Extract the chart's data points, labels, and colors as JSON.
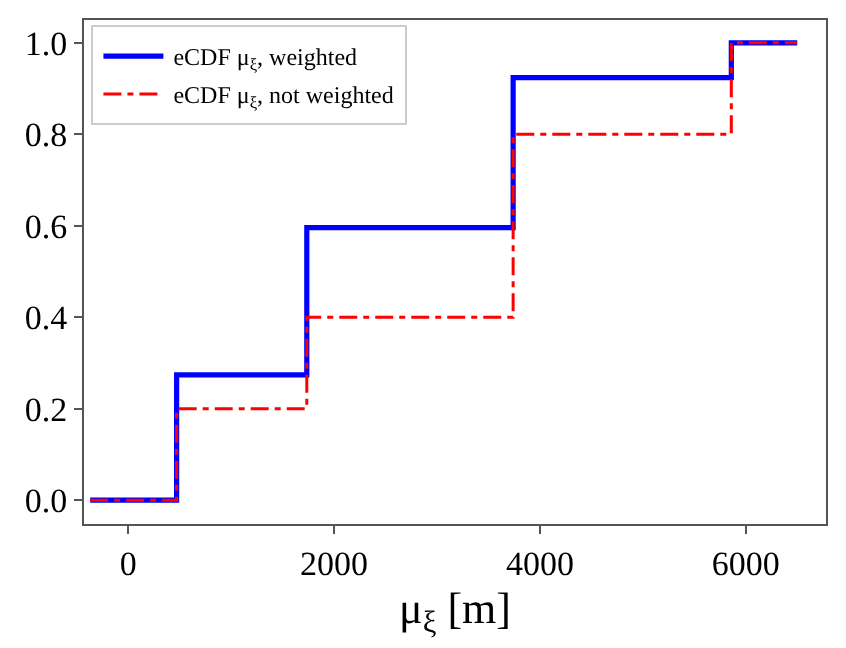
{
  "chart_data": {
    "type": "step",
    "xlabel": "μ$_{ξ}$ [m]",
    "x": [
      -370,
      470,
      1735,
      3740,
      5860,
      6500
    ],
    "series": [
      {
        "name": "eCDF μ$_{ξ}$, weighted",
        "color": "#0000ff",
        "line_style": "solid",
        "values": [
          0,
          0.274,
          0.596,
          0.924,
          1.0,
          1.0
        ]
      },
      {
        "name": "eCDF μ$_{ξ}$, not weighted",
        "color": "#ff0000",
        "line_style": "dashdot",
        "values": [
          0,
          0.2,
          0.4,
          0.8,
          1.0,
          1.0
        ]
      }
    ],
    "xlim": [
      -430,
      6780
    ],
    "xticks": [
      0,
      2000,
      4000,
      6000
    ],
    "ylim": [
      -0.052,
      1.05
    ],
    "yticks": [
      {
        "value": 0,
        "label": "0.0"
      },
      {
        "value": 0.2,
        "label": "0.2"
      },
      {
        "value": 0.4,
        "label": "0.4"
      },
      {
        "value": 0.6,
        "label": "0.6"
      },
      {
        "value": 0.8,
        "label": "0.8"
      },
      {
        "value": 1.0,
        "label": "1.0"
      }
    ],
    "legend": "top left",
    "marker": "none"
  }
}
